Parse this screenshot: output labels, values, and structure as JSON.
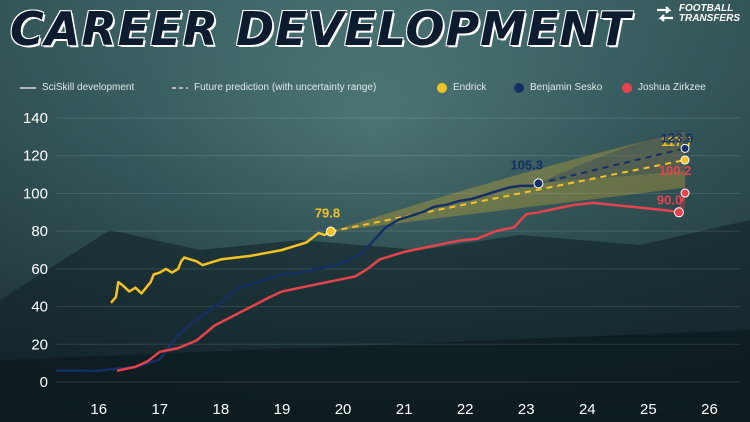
{
  "header": {
    "title": "CAREER DEVELOPMENT"
  },
  "logo": {
    "line1": "FOOTBALL",
    "line2": "TRANSFERS"
  },
  "legend": {
    "development": "SciSkill development",
    "prediction": "Future prediction (with uncertainty range)",
    "players": [
      "Endrick",
      "Benjamin Sesko",
      "Joshua Zirkzee"
    ]
  },
  "colors": {
    "endrick": "#f5c224",
    "sesko": "#152f64",
    "zirkzee": "#e8434c",
    "grey": "#b0b8bc"
  },
  "chart_data": {
    "type": "line",
    "title": "CAREER DEVELOPMENT",
    "xlabel": "",
    "ylabel": "",
    "xlim": [
      15.3,
      26.5
    ],
    "ylim": [
      0,
      140
    ],
    "xticks": [
      16,
      17,
      18,
      19,
      20,
      21,
      22,
      23,
      24,
      25,
      26
    ],
    "yticks": [
      0,
      20,
      40,
      60,
      80,
      100,
      120,
      140
    ],
    "grid": true,
    "legend_position": "top",
    "series": [
      {
        "name": "Endrick",
        "color": "#f5c224",
        "x": [
          16.2,
          16.28,
          16.32,
          16.4,
          16.5,
          16.6,
          16.7,
          16.8,
          16.85,
          16.9,
          17.0,
          17.1,
          17.2,
          17.3,
          17.35,
          17.4,
          17.5,
          17.6,
          17.7,
          17.8,
          17.9,
          18.0,
          18.5,
          19.0,
          19.2,
          19.4,
          19.6,
          19.7,
          19.8
        ],
        "y": [
          42,
          45,
          53,
          51,
          48,
          50,
          47,
          51,
          53,
          57,
          58,
          60,
          58,
          60,
          64,
          66,
          65,
          64,
          62,
          63,
          64,
          65,
          67,
          70,
          72,
          74,
          79,
          78,
          79.8
        ],
        "label_value": "79.8",
        "prediction": {
          "end_x": 25.6,
          "end_y": 117.7,
          "upper": 133,
          "lower": 103,
          "label": "117.7"
        }
      },
      {
        "name": "Benjamin Sesko",
        "color": "#152f64",
        "x": [
          15.3,
          15.8,
          16.0,
          16.3,
          16.6,
          17.0,
          17.3,
          17.6,
          18.0,
          18.3,
          18.6,
          19.0,
          19.3,
          19.6,
          20.0,
          20.3,
          20.5,
          20.7,
          20.9,
          21.1,
          21.3,
          21.5,
          21.7,
          21.9,
          22.1,
          22.3,
          22.5,
          22.7,
          22.9,
          23.1,
          23.2
        ],
        "y": [
          6,
          6,
          6,
          7,
          8,
          12,
          25,
          33,
          42,
          50,
          53,
          57,
          58,
          60,
          63,
          68,
          75,
          82,
          86,
          88,
          90,
          93,
          94,
          96,
          97,
          99,
          101,
          103,
          104,
          104,
          105.3
        ],
        "label_value": "105.3",
        "prediction": {
          "end_x": 25.6,
          "end_y": 123.9,
          "upper": 134,
          "lower": 112,
          "label": "123.9"
        }
      },
      {
        "name": "Joshua Zirkzee",
        "color": "#e8434c",
        "x": [
          16.3,
          16.6,
          16.8,
          17.0,
          17.3,
          17.6,
          17.9,
          18.2,
          18.5,
          18.8,
          19.0,
          19.3,
          19.6,
          19.9,
          20.2,
          20.4,
          20.6,
          20.8,
          21.0,
          21.3,
          21.6,
          21.9,
          22.2,
          22.5,
          22.8,
          23.0,
          23.2,
          23.5,
          23.8,
          24.1,
          24.4,
          24.7,
          25.0,
          25.3,
          25.5
        ],
        "y": [
          6,
          8,
          11,
          16,
          18,
          22,
          30,
          35,
          40,
          45,
          48,
          50,
          52,
          54,
          56,
          60,
          65,
          67,
          69,
          71,
          73,
          75,
          76,
          80,
          82,
          89,
          90,
          92,
          94,
          95,
          94,
          93,
          92,
          91,
          90
        ],
        "label_value": "90.0",
        "prediction": {
          "end_x": 25.6,
          "end_y": 100.2,
          "upper": 107,
          "lower": 92,
          "label": "100.2"
        }
      }
    ]
  }
}
